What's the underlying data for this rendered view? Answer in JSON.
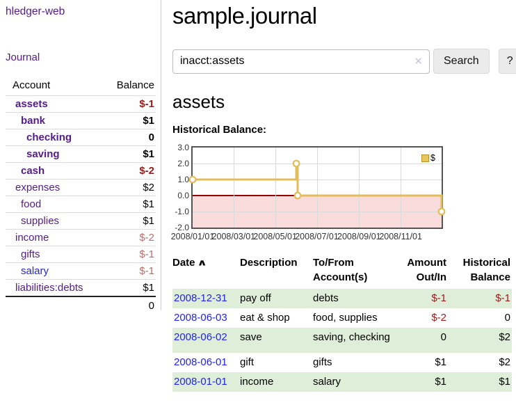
{
  "colors": {
    "link_purple": "#551A8B",
    "link_blue": "#2222EE",
    "negative_strong": "#9B1B1B",
    "negative_soft": "#BF6B69",
    "row_stripe_green": "#DFEED8",
    "chart_line_gold": "#E3BD5A",
    "chart_below_zero_fill": "#FADBDB",
    "chart_zero_line": "#990000",
    "chart_border": "#545454"
  },
  "sidebar": {
    "brand": "hledger-web",
    "nav_journal": "Journal",
    "accounts": {
      "header": {
        "account": "Account",
        "balance": "Balance"
      },
      "rows": [
        {
          "name": "assets",
          "balance": "$-1"
        },
        {
          "name": "bank",
          "balance": "$1"
        },
        {
          "name": "checking",
          "balance": "0"
        },
        {
          "name": "saving",
          "balance": "$1"
        },
        {
          "name": "cash",
          "balance": "$-2"
        },
        {
          "name": "expenses",
          "balance": "$2"
        },
        {
          "name": "food",
          "balance": "$1"
        },
        {
          "name": "supplies",
          "balance": "$1"
        },
        {
          "name": "income",
          "balance": "$-2"
        },
        {
          "name": "gifts",
          "balance": "$-1"
        },
        {
          "name": "salary",
          "balance": "$-1"
        },
        {
          "name": "liabilities:debts",
          "balance": "$1"
        }
      ],
      "total": "0"
    }
  },
  "main": {
    "title": "sample.journal",
    "search": {
      "value": "inacct:assets",
      "clear_icon": "✕",
      "search_button": "Search",
      "help_button": "?"
    },
    "account_heading": "assets",
    "chart_title": "Historical Balance:",
    "register": {
      "headers": {
        "date": "Date",
        "sort_indicator": "∧",
        "description": "Description",
        "accounts": "To/From Account(s)",
        "amount": "Amount Out/In",
        "balance": "Historical Balance"
      },
      "rows": [
        {
          "date": "2008-12-31",
          "description": "pay off",
          "accounts": "debts",
          "amount": "$-1",
          "balance": "$-1"
        },
        {
          "date": "2008-06-03",
          "description": "eat & shop",
          "accounts": "food, supplies",
          "amount": "$-2",
          "balance": "0"
        },
        {
          "date": "2008-06-02",
          "description": "save",
          "accounts": "saving, checking",
          "amount": "0",
          "balance": "$2"
        },
        {
          "date": "2008-06-01",
          "description": "gift",
          "accounts": "gifts",
          "amount": "$1",
          "balance": "$2"
        },
        {
          "date": "2008-01-01",
          "description": "income",
          "accounts": "salary",
          "amount": "$1",
          "balance": "$1"
        }
      ]
    }
  },
  "chart_data": {
    "type": "line",
    "step": true,
    "title": "Historical Balance:",
    "x_range": [
      "2008/01/01",
      "2008/12/31"
    ],
    "ylim": [
      -2,
      3
    ],
    "yticks": [
      "3.0",
      "2.0",
      "1.0",
      "0.0",
      "-1.0",
      "-2.0"
    ],
    "xticks": [
      "2008/01/01",
      "2008/03/01",
      "2008/05/01",
      "2008/07/01",
      "2008/09/01",
      "2008/11/01"
    ],
    "grid": true,
    "below_zero_shaded": true,
    "legend_position": "top-right",
    "series": [
      {
        "name": "$",
        "points": [
          [
            "2008/01/01",
            1
          ],
          [
            "2008/06/01",
            2
          ],
          [
            "2008/06/03",
            0
          ],
          [
            "2008/12/31",
            -1
          ]
        ]
      }
    ]
  }
}
